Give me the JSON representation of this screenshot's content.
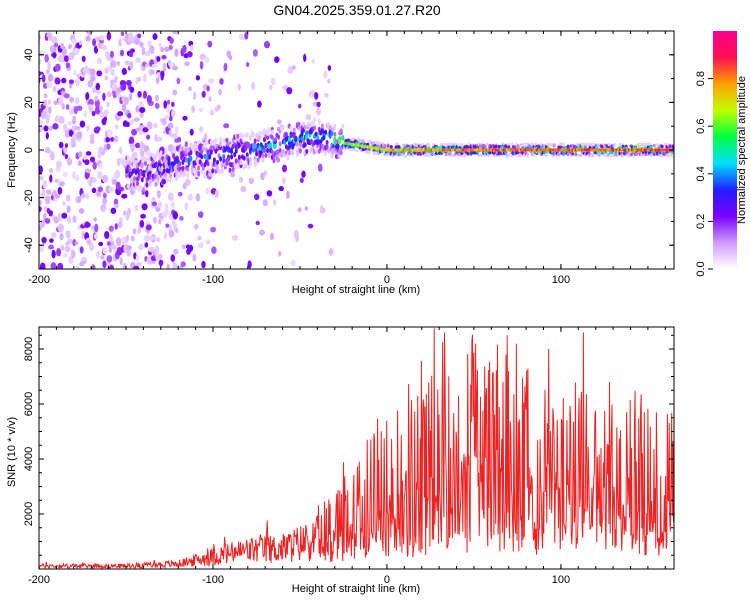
{
  "title": "GN04.2025.359.01.27.R20",
  "chart_data": [
    {
      "type": "heatmap",
      "name": "spectrogram",
      "xlabel": "Height of straight line (km)",
      "ylabel": "Frequency (Hz)",
      "xlim": [
        -200,
        165
      ],
      "ylim": [
        -50,
        50
      ],
      "xticks": [
        -200,
        -100,
        0,
        100
      ],
      "yticks": [
        -40,
        -20,
        0,
        20,
        40
      ],
      "colorbar": {
        "label": "Normalized spectral amplitude",
        "range": [
          0,
          1
        ],
        "ticks": [
          0.0,
          0.2,
          0.4,
          0.6,
          0.8
        ],
        "tick_labels": [
          "0.0",
          "0.2",
          "0.4",
          "0.6",
          "0.8"
        ],
        "colors": [
          "#ffffff",
          "#cf9bff",
          "#7b00ff",
          "#2020ff",
          "#00e0ff",
          "#00ff40",
          "#c0ff00",
          "#ffa000",
          "#ff1050",
          "#ff0090"
        ]
      },
      "ridge": [
        {
          "x": -140,
          "y": -10,
          "v": 0.35
        },
        {
          "x": -120,
          "y": -5,
          "v": 0.4
        },
        {
          "x": -100,
          "y": -3,
          "v": 0.45
        },
        {
          "x": -80,
          "y": 0,
          "v": 0.45
        },
        {
          "x": -60,
          "y": 3,
          "v": 0.5
        },
        {
          "x": -40,
          "y": 6,
          "v": 0.55
        },
        {
          "x": -25,
          "y": 3,
          "v": 0.65
        },
        {
          "x": 0,
          "y": 0,
          "v": 0.8
        },
        {
          "x": 50,
          "y": 0,
          "v": 0.85
        },
        {
          "x": 100,
          "y": 0,
          "v": 0.88
        },
        {
          "x": 165,
          "y": 0,
          "v": 0.9
        }
      ]
    },
    {
      "type": "line",
      "name": "snr",
      "xlabel": "Height of straight line (km)",
      "ylabel": "SNR (10 * v/v)",
      "xlim": [
        -200,
        165
      ],
      "ylim": [
        0,
        8800
      ],
      "xticks": [
        -200,
        -100,
        0,
        100
      ],
      "yticks": [
        2000,
        4000,
        6000,
        8000
      ],
      "color": "#ee2222",
      "envelope": [
        {
          "x": -200,
          "y": 150
        },
        {
          "x": -150,
          "y": 150
        },
        {
          "x": -120,
          "y": 250
        },
        {
          "x": -100,
          "y": 600
        },
        {
          "x": -80,
          "y": 900
        },
        {
          "x": -60,
          "y": 1000
        },
        {
          "x": -40,
          "y": 1500
        },
        {
          "x": -20,
          "y": 2500
        },
        {
          "x": 0,
          "y": 3500
        },
        {
          "x": 20,
          "y": 4500
        },
        {
          "x": 40,
          "y": 5000
        },
        {
          "x": 60,
          "y": 5000
        },
        {
          "x": 80,
          "y": 4800
        },
        {
          "x": 100,
          "y": 4500
        },
        {
          "x": 120,
          "y": 4200
        },
        {
          "x": 140,
          "y": 4000
        },
        {
          "x": 165,
          "y": 4000
        }
      ],
      "peaks": [
        {
          "x": 27,
          "y": 8750
        },
        {
          "x": 33,
          "y": 8600
        },
        {
          "x": 69,
          "y": 8500
        },
        {
          "x": 113,
          "y": 8600
        },
        {
          "x": 51,
          "y": 8200
        },
        {
          "x": 93,
          "y": 8000
        },
        {
          "x": 128,
          "y": 6800
        }
      ]
    }
  ]
}
